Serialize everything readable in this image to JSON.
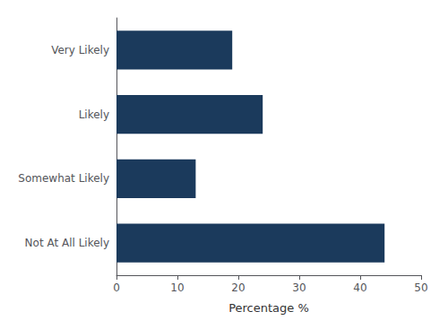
{
  "chart_data": {
    "type": "bar",
    "orientation": "horizontal",
    "categories": [
      "Not At All Likely",
      "Somewhat Likely",
      "Likely",
      "Very Likely"
    ],
    "values": [
      44,
      13,
      24,
      19
    ],
    "color": "#1b3a5c",
    "xlabel": "Percentage %",
    "xlim": [
      0,
      50
    ],
    "xticks": [
      0,
      10,
      20,
      30,
      40,
      50
    ],
    "grid": false
  }
}
